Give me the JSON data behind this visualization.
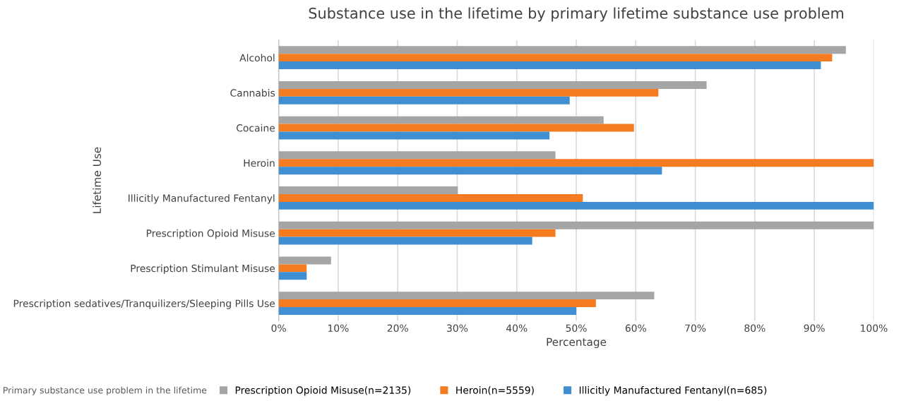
{
  "chart_data": {
    "type": "bar",
    "orientation": "horizontal",
    "title": "Substance use in the lifetime by primary lifetime substance use problem",
    "xlabel": "Percentage",
    "ylabel": "Lifetime Use",
    "legend_title": "Primary substance use problem in the lifetime",
    "categories": [
      "Alcohol",
      "Cannabis",
      "Cocaine",
      "Heroin",
      "Illicitly Manufactured Fentanyl",
      "Prescription Opioid Misuse",
      "Prescription Stimulant Misuse",
      "Prescription sedatives/Tranquilizers/Sleeping Pills Use"
    ],
    "series": [
      {
        "name": "Prescription Opioid Misuse(n=2135)",
        "color": "#a5a5a5",
        "values": [
          95.3,
          71.9,
          54.6,
          46.5,
          30.1,
          100,
          8.8,
          63.1
        ]
      },
      {
        "name": "Heroin(n=5559)",
        "color": "#f47b20",
        "values": [
          93.0,
          63.8,
          59.7,
          100,
          51.1,
          46.5,
          4.7,
          53.3
        ]
      },
      {
        "name": "Illicitly Manufactured Fentanyl(n=685)",
        "color": "#3f8fd2",
        "values": [
          91.1,
          48.9,
          45.5,
          64.4,
          100,
          42.6,
          4.7,
          50.0
        ]
      }
    ],
    "xlim": [
      0,
      100
    ],
    "xticks": [
      {
        "value": 0,
        "label": "0%"
      },
      {
        "value": 10,
        "label": "10%"
      },
      {
        "value": 20,
        "label": "20%"
      },
      {
        "value": 30,
        "label": "30%"
      },
      {
        "value": 40,
        "label": "40%"
      },
      {
        "value": 50,
        "label": "50%"
      },
      {
        "value": 60,
        "label": "60%"
      },
      {
        "value": 70,
        "label": "70%"
      },
      {
        "value": 80,
        "label": "80%"
      },
      {
        "value": 90,
        "label": "90%"
      },
      {
        "value": 100,
        "label": "100%"
      }
    ],
    "grid": "x",
    "legend": "bottom"
  }
}
